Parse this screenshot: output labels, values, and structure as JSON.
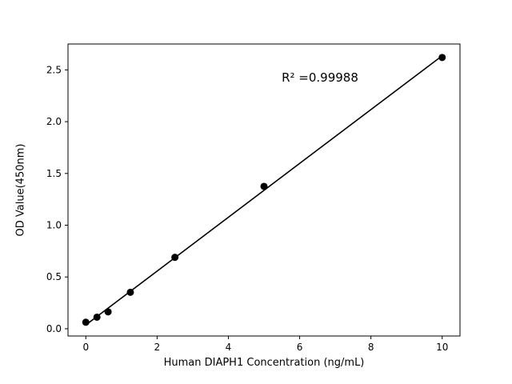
{
  "chart_data": {
    "type": "scatter",
    "x": [
      0,
      0.3125,
      0.625,
      1.25,
      2.5,
      5,
      10
    ],
    "y": [
      0.063,
      0.112,
      0.163,
      0.352,
      0.69,
      1.375,
      2.62
    ],
    "title": "",
    "xlabel": "Human DIAPH1 Concentration (ng/mL)",
    "ylabel": "OD Value(450nm)",
    "annotation": "R² =0.99988",
    "x_ticks": [
      "0",
      "2",
      "4",
      "6",
      "8",
      "10"
    ],
    "y_ticks": [
      "0.0",
      "0.5",
      "1.0",
      "1.5",
      "2.0",
      "2.5"
    ],
    "xlim": [
      -0.5,
      10.5
    ],
    "ylim": [
      -0.07,
      2.75
    ],
    "fit_line": "linear",
    "legend": "none",
    "grid": false,
    "marker_color": "#000000",
    "line_color": "#000000",
    "background_color": "#ffffff"
  }
}
